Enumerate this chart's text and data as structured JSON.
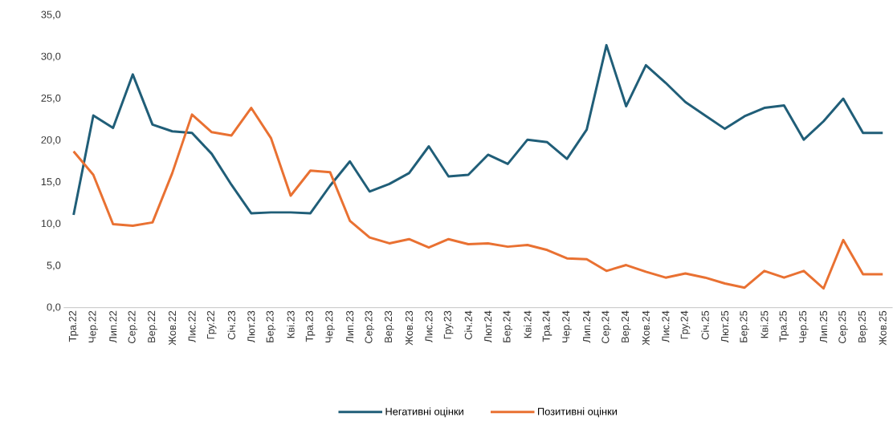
{
  "chart_data": {
    "type": "line",
    "categories": [
      "Тра.22",
      "Чер.22",
      "Лип.22",
      "Сер.22",
      "Вер.22",
      "Жов.22",
      "Лис.22",
      "Гру.22",
      "Січ.23",
      "Лют.23",
      "Бер.23",
      "Кві.23",
      "Тра.23",
      "Чер.23",
      "Лип.23",
      "Сер.23",
      "Вер.23",
      "Жов.23",
      "Лис.23",
      "Гру.23",
      "Січ.24",
      "Лют.24",
      "Бер.24",
      "Кві.24",
      "Тра.24",
      "Чер.24",
      "Лип.24",
      "Сер.24",
      "Вер.24",
      "Жов.24",
      "Лис.24",
      "Гру.24",
      "Січ.25",
      "Лют.25",
      "Бер.25",
      "Кві.25",
      "Тра.25",
      "Чер.25",
      "Лип.25",
      "Сер.25",
      "Вер.25",
      "Жов.25"
    ],
    "series": [
      {
        "name": "Негативні оцінки",
        "color": "#205e78",
        "values": [
          11.1,
          23.0,
          21.5,
          27.9,
          21.9,
          21.1,
          20.9,
          18.4,
          14.7,
          11.3,
          11.4,
          11.4,
          11.3,
          14.6,
          17.5,
          13.9,
          14.8,
          16.1,
          19.3,
          15.7,
          15.9,
          18.3,
          17.2,
          20.1,
          19.8,
          17.8,
          21.3,
          31.4,
          24.1,
          29.0,
          26.9,
          24.6,
          23.0,
          21.4,
          22.9,
          23.9,
          24.2,
          20.1,
          22.3,
          25.0,
          20.9,
          20.9
        ]
      },
      {
        "name": "Позитивні оцінки",
        "color": "#e97132",
        "values": [
          18.7,
          15.9,
          10.0,
          9.8,
          10.2,
          16.1,
          23.1,
          21.0,
          20.6,
          23.9,
          20.3,
          13.4,
          16.4,
          16.2,
          10.4,
          8.4,
          7.7,
          8.2,
          7.2,
          8.2,
          7.6,
          7.7,
          7.3,
          7.5,
          6.9,
          5.9,
          5.8,
          4.4,
          5.1,
          4.3,
          3.6,
          4.1,
          3.6,
          2.9,
          2.4,
          4.4,
          3.6,
          4.4,
          2.3,
          8.1,
          4.0,
          4.0
        ]
      }
    ],
    "ylim": [
      0,
      35
    ],
    "yticks": [
      {
        "value": 0,
        "label": "0,0"
      },
      {
        "value": 5,
        "label": "5,0"
      },
      {
        "value": 10,
        "label": "10,0"
      },
      {
        "value": 15,
        "label": "15,0"
      },
      {
        "value": 20,
        "label": "20,0"
      },
      {
        "value": 25,
        "label": "25,0"
      },
      {
        "value": 30,
        "label": "30,0"
      },
      {
        "value": 35,
        "label": "35,0"
      }
    ],
    "legend": "bottom"
  }
}
